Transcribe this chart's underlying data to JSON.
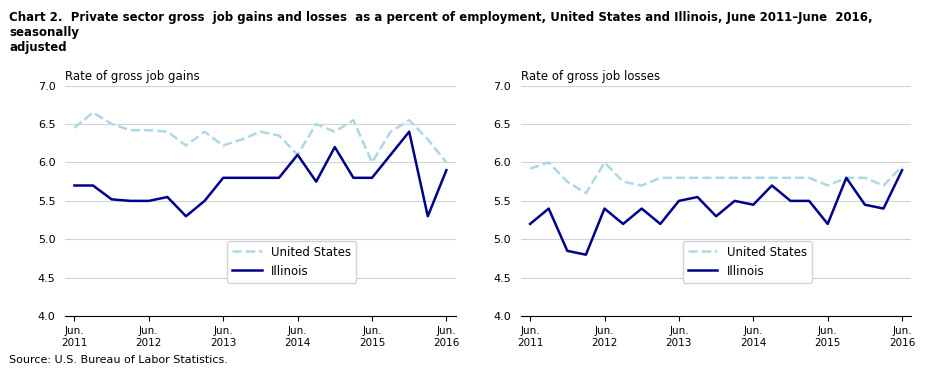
{
  "title": "Chart 2.  Private sector gross  job gains and losses  as a percent of employment, United States and Illinois, June 2011–June  2016, seasonally\nadjusted",
  "source": "Source: U.S. Bureau of Labor Statistics.",
  "left_ylabel": "Rate of gross job gains",
  "right_ylabel": "Rate of gross job losses",
  "ylim": [
    4.0,
    7.0
  ],
  "yticks": [
    4.0,
    4.5,
    5.0,
    5.5,
    6.0,
    6.5,
    7.0
  ],
  "x_labels": [
    "Jun.\n2011",
    "Jun.\n2012",
    "Jun.\n2013",
    "Jun.\n2014",
    "Jun.\n2015",
    "Jun.\n2016"
  ],
  "x_tick_positions": [
    0,
    4,
    8,
    12,
    16,
    20
  ],
  "gains_us": [
    6.45,
    6.65,
    6.5,
    6.42,
    6.42,
    6.4,
    6.22,
    6.4,
    6.22,
    6.3,
    6.4,
    6.35,
    6.1,
    6.5,
    6.4,
    6.55,
    6.0,
    6.4,
    6.55,
    6.3,
    6.0
  ],
  "gains_il": [
    5.7,
    5.7,
    5.52,
    5.5,
    5.5,
    5.55,
    5.3,
    5.5,
    5.8,
    5.8,
    5.8,
    5.8,
    6.1,
    5.75,
    6.2,
    5.8,
    5.8,
    6.1,
    6.4,
    5.3,
    5.9
  ],
  "losses_us": [
    5.92,
    6.0,
    5.75,
    5.6,
    6.0,
    5.75,
    5.7,
    5.8,
    5.8,
    5.8,
    5.8,
    5.8,
    5.8,
    5.8,
    5.8,
    5.8,
    5.7,
    5.8,
    5.8,
    5.7,
    5.95
  ],
  "losses_il": [
    5.2,
    5.4,
    4.85,
    4.8,
    5.4,
    5.2,
    5.4,
    5.2,
    5.5,
    5.55,
    5.3,
    5.5,
    5.45,
    5.7,
    5.5,
    5.5,
    5.2,
    5.8,
    5.45,
    5.4,
    5.9
  ],
  "us_color": "#add8e6",
  "il_color": "#00008b",
  "us_lw": 1.8,
  "il_lw": 1.8
}
